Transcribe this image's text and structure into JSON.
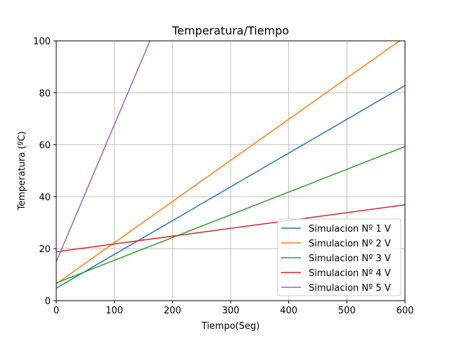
{
  "chart_data": {
    "type": "line",
    "title": "Temperatura/Tiempo",
    "xlabel": "Tiempo(Seg)",
    "ylabel": "Temperatura (ºC)",
    "xlim": [
      0,
      600
    ],
    "ylim": [
      0,
      100
    ],
    "xticks": [
      0,
      100,
      200,
      300,
      400,
      500,
      600
    ],
    "yticks": [
      0,
      20,
      40,
      60,
      80,
      100
    ],
    "grid": true,
    "legend_position": "lower-right",
    "series": [
      {
        "name": "Simulacion Nº 1 V",
        "color": "#1f77b4",
        "x": [
          0,
          600
        ],
        "y": [
          4.8,
          82.8
        ]
      },
      {
        "name": "Simulacion Nº 2 V",
        "color": "#ff7f0e",
        "x": [
          0,
          600
        ],
        "y": [
          6.5,
          101.5
        ]
      },
      {
        "name": "Simulacion Nº 3 V",
        "color": "#2ca02c",
        "x": [
          0,
          600
        ],
        "y": [
          6.8,
          59.3
        ]
      },
      {
        "name": "Simulacion Nº 4 V",
        "color": "#d62728",
        "x": [
          0,
          600
        ],
        "y": [
          18.8,
          36.9
        ]
      },
      {
        "name": "Simulacion Nº 5 V",
        "color": "#9467bd",
        "x": [
          0,
          165
        ],
        "y": [
          15.0,
          102.0
        ]
      }
    ]
  }
}
